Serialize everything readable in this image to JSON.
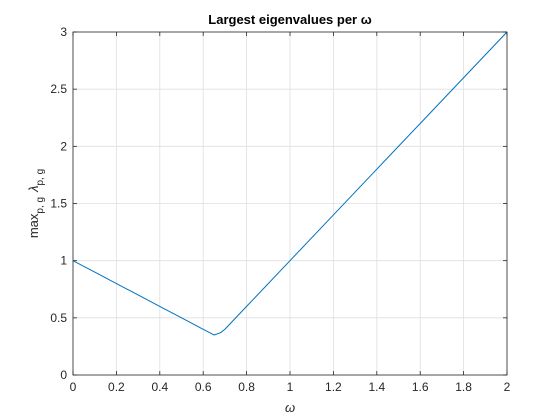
{
  "chart_data": {
    "type": "line",
    "title": "Largest eigenvalues per ω",
    "xlabel": "ω",
    "ylabel": {
      "main": "max",
      "main_subscript": "p, g",
      "symbol": "λ",
      "symbol_subscript": "p, g"
    },
    "xlim": [
      0,
      2
    ],
    "ylim": [
      0,
      3
    ],
    "xticks": [
      0,
      0.2,
      0.4,
      0.6,
      0.8,
      1,
      1.2,
      1.4,
      1.6,
      1.8,
      2
    ],
    "xtick_labels": [
      "0",
      "0.2",
      "0.4",
      "0.6",
      "0.8",
      "1",
      "1.2",
      "1.4",
      "1.6",
      "1.8",
      "2"
    ],
    "yticks": [
      0,
      0.5,
      1,
      1.5,
      2,
      2.5,
      3
    ],
    "ytick_labels": [
      "0",
      "0.5",
      "1",
      "1.5",
      "2",
      "2.5",
      "3"
    ],
    "grid": true,
    "box": true,
    "series": [
      {
        "color": "#0072bd",
        "x": [
          0,
          0.1,
          0.2,
          0.3,
          0.4,
          0.5,
          0.6,
          0.65,
          0.68,
          0.7,
          0.8,
          1.0,
          1.2,
          1.4,
          1.6,
          1.8,
          2.0
        ],
        "y": [
          1.0,
          0.9,
          0.8,
          0.7,
          0.6,
          0.5,
          0.4,
          0.35,
          0.37,
          0.4,
          0.6,
          1.0,
          1.4,
          1.8,
          2.2,
          2.6,
          3.0
        ]
      }
    ]
  }
}
